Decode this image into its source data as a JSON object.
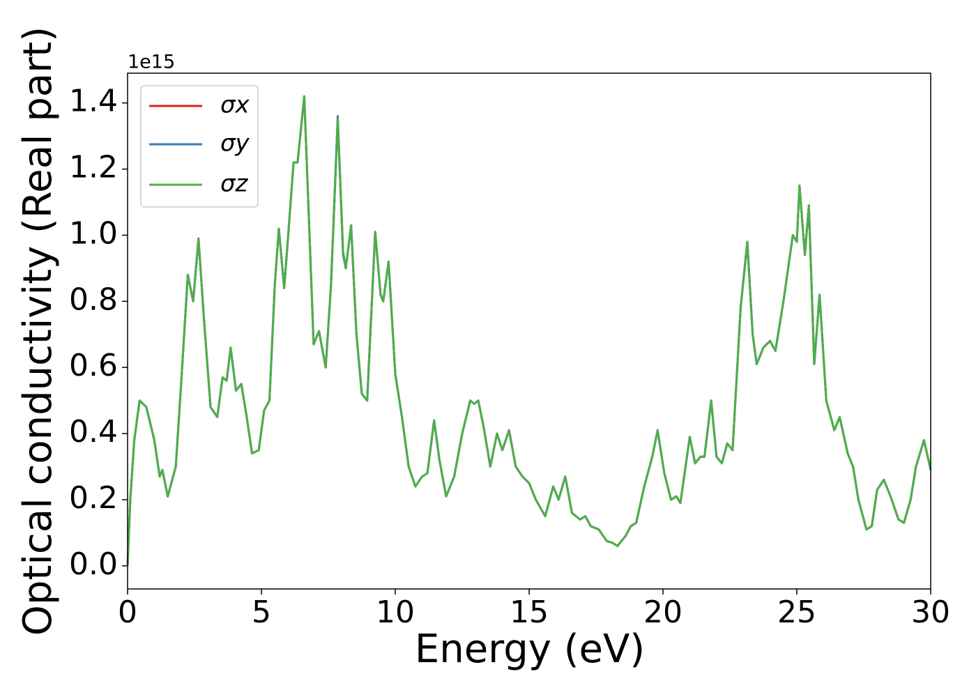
{
  "chart_data": {
    "type": "line",
    "xlabel": "Energy (eV)",
    "ylabel": "Optical conductivity (Real part)",
    "y_offset_label": "1e15",
    "xlim": [
      0,
      30
    ],
    "xticks": [
      0,
      5,
      10,
      15,
      20,
      25,
      30
    ],
    "ylim": [
      -0.07,
      1.49
    ],
    "yticks": [
      {
        "value": 0,
        "label": "0.0"
      },
      0.2,
      0.4,
      0.6,
      0.8,
      {
        "value": 1,
        "label": "1.0"
      },
      1.2,
      1.4
    ],
    "legend": "upper left",
    "x": [
      0,
      0.1,
      0.25,
      0.45,
      0.7,
      1.0,
      1.2,
      1.3,
      1.5,
      1.8,
      2.0,
      2.25,
      2.45,
      2.65,
      2.85,
      3.1,
      3.35,
      3.55,
      3.7,
      3.85,
      4.05,
      4.25,
      4.45,
      4.65,
      4.9,
      5.1,
      5.3,
      5.5,
      5.65,
      5.85,
      6.0,
      6.2,
      6.35,
      6.6,
      6.75,
      6.95,
      7.15,
      7.4,
      7.6,
      7.85,
      8.05,
      8.15,
      8.35,
      8.55,
      8.75,
      8.95,
      9.25,
      9.45,
      9.55,
      9.75,
      10.0,
      10.25,
      10.5,
      10.75,
      11.0,
      11.2,
      11.45,
      11.65,
      11.9,
      12.2,
      12.5,
      12.8,
      12.95,
      13.1,
      13.3,
      13.55,
      13.8,
      14.0,
      14.25,
      14.5,
      14.75,
      15.0,
      15.25,
      15.6,
      15.9,
      16.1,
      16.35,
      16.6,
      16.9,
      17.1,
      17.3,
      17.6,
      17.9,
      18.1,
      18.3,
      18.6,
      18.8,
      19.0,
      19.3,
      19.6,
      19.8,
      20.05,
      20.3,
      20.5,
      20.65,
      21.0,
      21.2,
      21.4,
      21.55,
      21.8,
      22.0,
      22.2,
      22.4,
      22.6,
      22.9,
      23.15,
      23.35,
      23.5,
      23.75,
      24.0,
      24.2,
      24.5,
      24.85,
      25.0,
      25.1,
      25.3,
      25.45,
      25.65,
      25.85,
      26.1,
      26.4,
      26.6,
      26.9,
      27.1,
      27.3,
      27.6,
      27.8,
      28.0,
      28.25,
      28.5,
      28.8,
      29.0,
      29.25,
      29.45,
      29.75,
      30.0
    ],
    "series": [
      {
        "name": "σx",
        "color": "#e41a1c",
        "values": [
          0,
          0.2,
          0.38,
          0.5,
          0.48,
          0.38,
          0.27,
          0.29,
          0.21,
          0.3,
          0.55,
          0.88,
          0.8,
          0.99,
          0.75,
          0.48,
          0.45,
          0.57,
          0.56,
          0.66,
          0.53,
          0.55,
          0.45,
          0.34,
          0.35,
          0.47,
          0.5,
          0.85,
          1.02,
          0.84,
          1.0,
          1.22,
          1.22,
          1.42,
          1.1,
          0.67,
          0.71,
          0.6,
          0.85,
          1.35,
          0.95,
          0.9,
          1.03,
          0.7,
          0.52,
          0.5,
          1.01,
          0.82,
          0.8,
          0.92,
          0.58,
          0.45,
          0.3,
          0.24,
          0.27,
          0.28,
          0.44,
          0.32,
          0.21,
          0.27,
          0.4,
          0.5,
          0.49,
          0.5,
          0.42,
          0.3,
          0.4,
          0.35,
          0.41,
          0.3,
          0.27,
          0.25,
          0.2,
          0.15,
          0.24,
          0.2,
          0.27,
          0.16,
          0.14,
          0.15,
          0.12,
          0.11,
          0.075,
          0.07,
          0.06,
          0.09,
          0.12,
          0.13,
          0.24,
          0.33,
          0.41,
          0.28,
          0.2,
          0.21,
          0.19,
          0.39,
          0.31,
          0.33,
          0.33,
          0.5,
          0.33,
          0.31,
          0.37,
          0.35,
          0.78,
          0.98,
          0.7,
          0.61,
          0.66,
          0.68,
          0.65,
          0.8,
          1.0,
          0.98,
          1.15,
          0.94,
          1.09,
          0.61,
          0.82,
          0.5,
          0.41,
          0.45,
          0.34,
          0.3,
          0.2,
          0.11,
          0.12,
          0.23,
          0.26,
          0.21,
          0.14,
          0.13,
          0.2,
          0.3,
          0.38,
          0.29
        ]
      },
      {
        "name": "σy",
        "color": "#377eb8",
        "values": [
          0,
          0.2,
          0.38,
          0.5,
          0.48,
          0.38,
          0.27,
          0.29,
          0.21,
          0.3,
          0.55,
          0.88,
          0.8,
          0.99,
          0.75,
          0.48,
          0.45,
          0.57,
          0.56,
          0.66,
          0.53,
          0.55,
          0.45,
          0.34,
          0.35,
          0.47,
          0.5,
          0.85,
          1.02,
          0.84,
          1.0,
          1.22,
          1.22,
          1.42,
          1.1,
          0.67,
          0.71,
          0.6,
          0.85,
          1.36,
          0.94,
          0.9,
          1.03,
          0.7,
          0.52,
          0.5,
          1.01,
          0.82,
          0.8,
          0.92,
          0.58,
          0.45,
          0.3,
          0.24,
          0.27,
          0.28,
          0.44,
          0.32,
          0.21,
          0.27,
          0.4,
          0.5,
          0.49,
          0.5,
          0.42,
          0.3,
          0.4,
          0.35,
          0.41,
          0.3,
          0.27,
          0.25,
          0.2,
          0.15,
          0.24,
          0.2,
          0.27,
          0.16,
          0.14,
          0.15,
          0.12,
          0.11,
          0.075,
          0.07,
          0.06,
          0.09,
          0.12,
          0.13,
          0.24,
          0.33,
          0.41,
          0.28,
          0.2,
          0.21,
          0.19,
          0.39,
          0.31,
          0.33,
          0.33,
          0.5,
          0.33,
          0.31,
          0.37,
          0.35,
          0.78,
          0.98,
          0.7,
          0.61,
          0.66,
          0.68,
          0.65,
          0.8,
          1.0,
          0.98,
          1.15,
          0.94,
          1.09,
          0.61,
          0.82,
          0.5,
          0.41,
          0.45,
          0.34,
          0.3,
          0.2,
          0.11,
          0.12,
          0.23,
          0.26,
          0.21,
          0.14,
          0.13,
          0.2,
          0.3,
          0.38,
          0.29
        ]
      },
      {
        "name": "σz",
        "color": "#4daf4a",
        "values": [
          0,
          0.2,
          0.38,
          0.5,
          0.48,
          0.38,
          0.27,
          0.29,
          0.21,
          0.3,
          0.55,
          0.88,
          0.8,
          0.99,
          0.75,
          0.48,
          0.45,
          0.57,
          0.56,
          0.66,
          0.53,
          0.55,
          0.45,
          0.34,
          0.35,
          0.47,
          0.5,
          0.85,
          1.02,
          0.84,
          1.0,
          1.22,
          1.22,
          1.42,
          1.1,
          0.67,
          0.71,
          0.6,
          0.85,
          1.35,
          0.95,
          0.9,
          1.03,
          0.7,
          0.52,
          0.5,
          1.01,
          0.82,
          0.8,
          0.92,
          0.58,
          0.45,
          0.3,
          0.24,
          0.27,
          0.28,
          0.44,
          0.32,
          0.21,
          0.27,
          0.4,
          0.5,
          0.49,
          0.5,
          0.42,
          0.3,
          0.4,
          0.35,
          0.41,
          0.3,
          0.27,
          0.25,
          0.2,
          0.15,
          0.24,
          0.2,
          0.27,
          0.16,
          0.14,
          0.15,
          0.12,
          0.11,
          0.075,
          0.07,
          0.06,
          0.09,
          0.12,
          0.13,
          0.24,
          0.33,
          0.41,
          0.28,
          0.2,
          0.21,
          0.19,
          0.39,
          0.31,
          0.33,
          0.33,
          0.5,
          0.33,
          0.31,
          0.37,
          0.35,
          0.78,
          0.98,
          0.7,
          0.61,
          0.66,
          0.68,
          0.65,
          0.8,
          1.0,
          0.98,
          1.15,
          0.94,
          1.09,
          0.61,
          0.82,
          0.5,
          0.41,
          0.45,
          0.34,
          0.3,
          0.2,
          0.11,
          0.12,
          0.23,
          0.26,
          0.21,
          0.14,
          0.13,
          0.2,
          0.3,
          0.38,
          0.29
        ]
      }
    ]
  }
}
